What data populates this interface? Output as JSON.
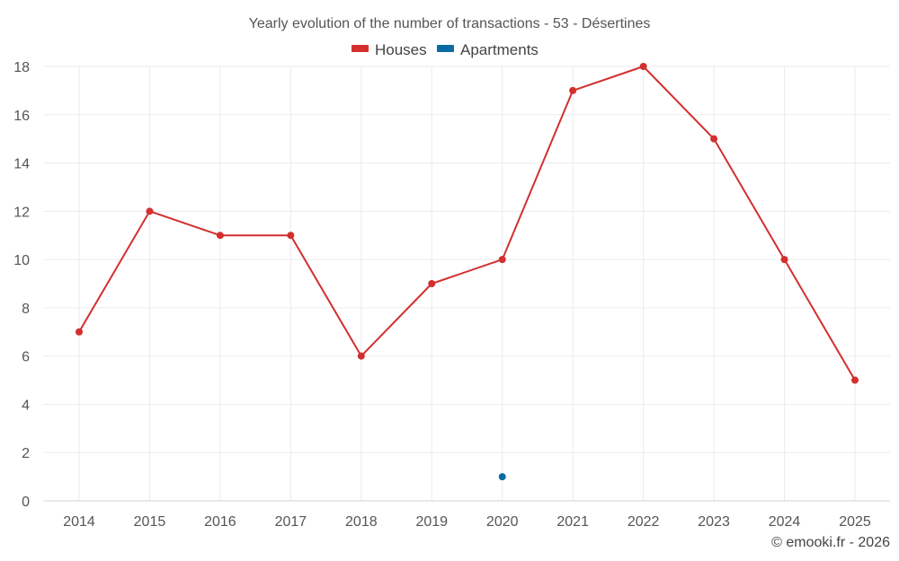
{
  "chart_data": {
    "type": "line",
    "title": "Yearly evolution of the number of transactions - 53 - Désertines",
    "categories": [
      "2014",
      "2015",
      "2016",
      "2017",
      "2018",
      "2019",
      "2020",
      "2021",
      "2022",
      "2023",
      "2024",
      "2025"
    ],
    "series": [
      {
        "name": "Houses",
        "color": "#d32f2f",
        "values": [
          7,
          12,
          11,
          11,
          6,
          9,
          10,
          17,
          18,
          15,
          10,
          5
        ]
      },
      {
        "name": "Apartments",
        "color": "#0a6aa1",
        "values": [
          null,
          null,
          null,
          null,
          null,
          null,
          1,
          null,
          null,
          null,
          null,
          null
        ]
      }
    ],
    "ylim": [
      0,
      18
    ],
    "yticks": [
      0,
      2,
      4,
      6,
      8,
      10,
      12,
      14,
      16,
      18
    ],
    "xlabel": "",
    "ylabel": "",
    "grid": true,
    "legend_position": "top-center"
  },
  "credit": "© emooki.fr - 2026"
}
